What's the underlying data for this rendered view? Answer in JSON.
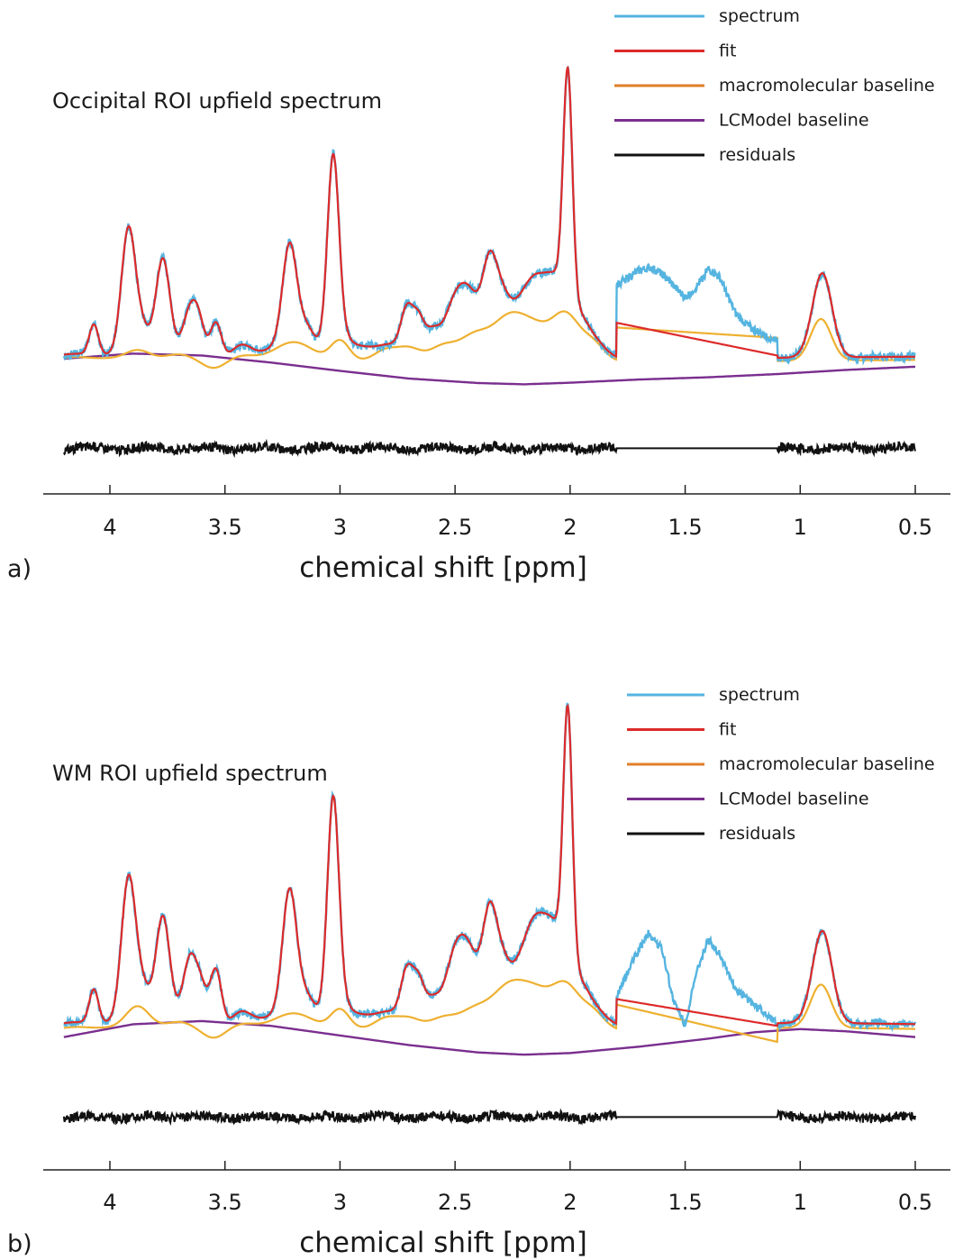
{
  "figure": {
    "panels": [
      {
        "letter": "a)",
        "title": "Occipital ROI upfield spectrum"
      },
      {
        "letter": "b)",
        "title": "WM ROI upfield spectrum"
      }
    ]
  },
  "colors": {
    "spectrum": "#55b4e0",
    "fit": "#dd2a2a",
    "macromolecular": "#eeb030",
    "macromolecular_legend": "#e07f28",
    "lcmodel": "#7a2e8e",
    "residuals": "#111111",
    "axis": "#222222"
  },
  "chart_data": [
    {
      "type": "line",
      "title": "Occipital ROI upfield spectrum",
      "xlabel": "chemical shift [ppm]",
      "ylabel": "",
      "xlim": [
        4.2,
        0.5
      ],
      "x_reversed": true,
      "xticks": [
        4,
        3.5,
        3,
        2.5,
        2,
        1.5,
        1,
        0.5
      ],
      "xtick_labels": [
        "4",
        "3.5",
        "3",
        "2.5",
        "2",
        "1.5",
        "1",
        "0.5"
      ],
      "ylim": [
        -1.0,
        8.0
      ],
      "grid": false,
      "legend": {
        "placement": "top-right",
        "entries": [
          "spectrum",
          "fit",
          "macromolecular baseline",
          "LCModel baseline",
          "residuals"
        ]
      },
      "residual_offset": -2.8,
      "gap": [
        1.8,
        1.1
      ],
      "peaks": [
        [
          4.07,
          0.95,
          0.02
        ],
        [
          3.92,
          3.75,
          0.03
        ],
        [
          3.86,
          0.6,
          0.03
        ],
        [
          3.77,
          2.95,
          0.03
        ],
        [
          3.65,
          1.35,
          0.03
        ],
        [
          3.61,
          0.9,
          0.025
        ],
        [
          3.54,
          1.3,
          0.025
        ],
        [
          3.43,
          0.25,
          0.04
        ],
        [
          3.22,
          2.9,
          0.03
        ],
        [
          3.15,
          0.55,
          0.04
        ],
        [
          3.03,
          5.8,
          0.025
        ],
        [
          2.91,
          0.3,
          0.05
        ],
        [
          2.71,
          1.1,
          0.025
        ],
        [
          2.66,
          0.9,
          0.025
        ],
        [
          2.6,
          0.5,
          0.03
        ],
        [
          2.5,
          1.1,
          0.04
        ],
        [
          2.44,
          1.05,
          0.04
        ],
        [
          2.35,
          2.0,
          0.03
        ],
        [
          2.3,
          0.65,
          0.03
        ],
        [
          2.15,
          1.2,
          0.05
        ],
        [
          2.07,
          0.9,
          0.04
        ],
        [
          2.01,
          7.2,
          0.02
        ],
        [
          1.95,
          0.3,
          0.03
        ],
        [
          0.9,
          1.35,
          0.04
        ]
      ],
      "mm_peaks": [
        [
          4.15,
          0.05,
          0.05
        ],
        [
          3.88,
          0.25,
          0.05
        ],
        [
          3.7,
          0.12,
          0.05
        ],
        [
          3.55,
          -0.3,
          0.05
        ],
        [
          3.42,
          0.1,
          0.05
        ],
        [
          3.2,
          0.55,
          0.08
        ],
        [
          3.0,
          0.62,
          0.04
        ],
        [
          2.8,
          0.35,
          0.05
        ],
        [
          2.7,
          0.4,
          0.05
        ],
        [
          2.55,
          0.5,
          0.06
        ],
        [
          2.42,
          0.7,
          0.06
        ],
        [
          2.26,
          1.45,
          0.08
        ],
        [
          2.14,
          0.65,
          0.06
        ],
        [
          2.02,
          1.45,
          0.06
        ],
        [
          1.9,
          0.55,
          0.05
        ],
        [
          0.91,
          1.3,
          0.045
        ]
      ],
      "lcm_baseline": [
        [
          4.2,
          0.0
        ],
        [
          3.9,
          0.16
        ],
        [
          3.6,
          0.1
        ],
        [
          3.3,
          -0.12
        ],
        [
          3.0,
          -0.38
        ],
        [
          2.7,
          -0.62
        ],
        [
          2.4,
          -0.76
        ],
        [
          2.2,
          -0.8
        ],
        [
          2.0,
          -0.75
        ],
        [
          1.7,
          -0.65
        ],
        [
          1.4,
          -0.58
        ],
        [
          1.1,
          -0.48
        ],
        [
          0.8,
          -0.35
        ],
        [
          0.5,
          -0.25
        ]
      ],
      "gap_spectrum": [
        [
          1.9,
          2.7
        ],
        [
          1.8,
          2.3
        ],
        [
          1.7,
          2.75
        ],
        [
          1.65,
          2.85
        ],
        [
          1.6,
          2.65
        ],
        [
          1.5,
          1.9
        ],
        [
          1.45,
          2.25
        ],
        [
          1.4,
          2.8
        ],
        [
          1.35,
          2.55
        ],
        [
          1.28,
          1.4
        ],
        [
          1.22,
          1.0
        ],
        [
          1.15,
          0.7
        ],
        [
          1.08,
          0.55
        ],
        [
          1.0,
          0.7
        ]
      ],
      "gap_fit": [
        [
          1.85,
          1.2
        ],
        [
          1.1,
          0.1
        ],
        [
          1.0,
          0.4
        ]
      ],
      "gap_mm": [
        [
          1.85,
          1.0
        ],
        [
          1.1,
          0.65
        ],
        [
          1.05,
          0.4
        ]
      ],
      "offset": 0.1
    },
    {
      "type": "line",
      "title": "WM ROI upfield spectrum",
      "xlabel": "chemical shift [ppm]",
      "ylabel": "",
      "xlim": [
        4.2,
        0.5
      ],
      "x_reversed": true,
      "xticks": [
        4,
        3.5,
        3,
        2.5,
        2,
        1.5,
        1,
        0.5
      ],
      "xtick_labels": [
        "4",
        "3.5",
        "3",
        "2.5",
        "2",
        "1.5",
        "1",
        "0.5"
      ],
      "ylim": [
        -1.0,
        8.0
      ],
      "grid": false,
      "legend": {
        "placement": "top-right",
        "entries": [
          "spectrum",
          "fit",
          "macromolecular baseline",
          "LCModel baseline",
          "residuals"
        ]
      },
      "residual_offset": -2.8,
      "gap": [
        1.8,
        1.1
      ],
      "peaks": [
        [
          4.07,
          1.05,
          0.02
        ],
        [
          3.92,
          4.05,
          0.03
        ],
        [
          3.86,
          0.55,
          0.03
        ],
        [
          3.77,
          3.2,
          0.03
        ],
        [
          3.65,
          1.95,
          0.03
        ],
        [
          3.6,
          1.0,
          0.025
        ],
        [
          3.54,
          1.95,
          0.025
        ],
        [
          3.43,
          0.25,
          0.04
        ],
        [
          3.22,
          3.65,
          0.03
        ],
        [
          3.15,
          0.55,
          0.04
        ],
        [
          3.03,
          6.6,
          0.025
        ],
        [
          2.91,
          0.25,
          0.05
        ],
        [
          2.71,
          1.3,
          0.025
        ],
        [
          2.66,
          1.1,
          0.025
        ],
        [
          2.6,
          0.5,
          0.03
        ],
        [
          2.5,
          1.6,
          0.04
        ],
        [
          2.44,
          1.4,
          0.04
        ],
        [
          2.35,
          2.55,
          0.03
        ],
        [
          2.3,
          0.7,
          0.03
        ],
        [
          2.15,
          1.85,
          0.05
        ],
        [
          2.07,
          1.3,
          0.04
        ],
        [
          2.01,
          8.0,
          0.02
        ],
        [
          1.95,
          0.35,
          0.03
        ],
        [
          0.9,
          1.55,
          0.04
        ]
      ],
      "mm_peaks": [
        [
          4.15,
          0.05,
          0.05
        ],
        [
          3.88,
          0.65,
          0.05
        ],
        [
          3.7,
          0.15,
          0.05
        ],
        [
          3.55,
          -0.35,
          0.05
        ],
        [
          3.42,
          0.1,
          0.05
        ],
        [
          3.2,
          0.45,
          0.08
        ],
        [
          3.0,
          0.6,
          0.04
        ],
        [
          2.8,
          0.35,
          0.05
        ],
        [
          2.7,
          0.35,
          0.05
        ],
        [
          2.55,
          0.4,
          0.06
        ],
        [
          2.42,
          0.55,
          0.06
        ],
        [
          2.26,
          1.45,
          0.08
        ],
        [
          2.14,
          0.8,
          0.06
        ],
        [
          2.02,
          1.4,
          0.06
        ],
        [
          1.9,
          0.55,
          0.05
        ],
        [
          0.91,
          1.35,
          0.045
        ]
      ],
      "lcm_baseline": [
        [
          4.2,
          -0.3
        ],
        [
          3.9,
          0.1
        ],
        [
          3.6,
          0.2
        ],
        [
          3.3,
          0.05
        ],
        [
          3.0,
          -0.25
        ],
        [
          2.7,
          -0.55
        ],
        [
          2.4,
          -0.78
        ],
        [
          2.2,
          -0.85
        ],
        [
          2.0,
          -0.8
        ],
        [
          1.7,
          -0.6
        ],
        [
          1.4,
          -0.35
        ],
        [
          1.2,
          -0.15
        ],
        [
          1.0,
          -0.05
        ],
        [
          0.8,
          -0.12
        ],
        [
          0.5,
          -0.3
        ]
      ],
      "gap_spectrum": [
        [
          1.9,
          0.95
        ],
        [
          1.8,
          0.9
        ],
        [
          1.72,
          2.2
        ],
        [
          1.66,
          2.95
        ],
        [
          1.6,
          2.45
        ],
        [
          1.55,
          0.8
        ],
        [
          1.5,
          0.1
        ],
        [
          1.45,
          1.7
        ],
        [
          1.4,
          2.75
        ],
        [
          1.35,
          2.3
        ],
        [
          1.28,
          1.2
        ],
        [
          1.2,
          0.7
        ],
        [
          1.1,
          0.15
        ],
        [
          1.0,
          0.35
        ]
      ],
      "gap_fit": [
        [
          1.85,
          0.95
        ],
        [
          1.1,
          0.05
        ],
        [
          1.0,
          0.2
        ]
      ],
      "gap_mm": [
        [
          1.85,
          0.8
        ],
        [
          1.1,
          -0.45
        ],
        [
          1.0,
          0.0
        ]
      ],
      "offset": 0.15
    }
  ]
}
